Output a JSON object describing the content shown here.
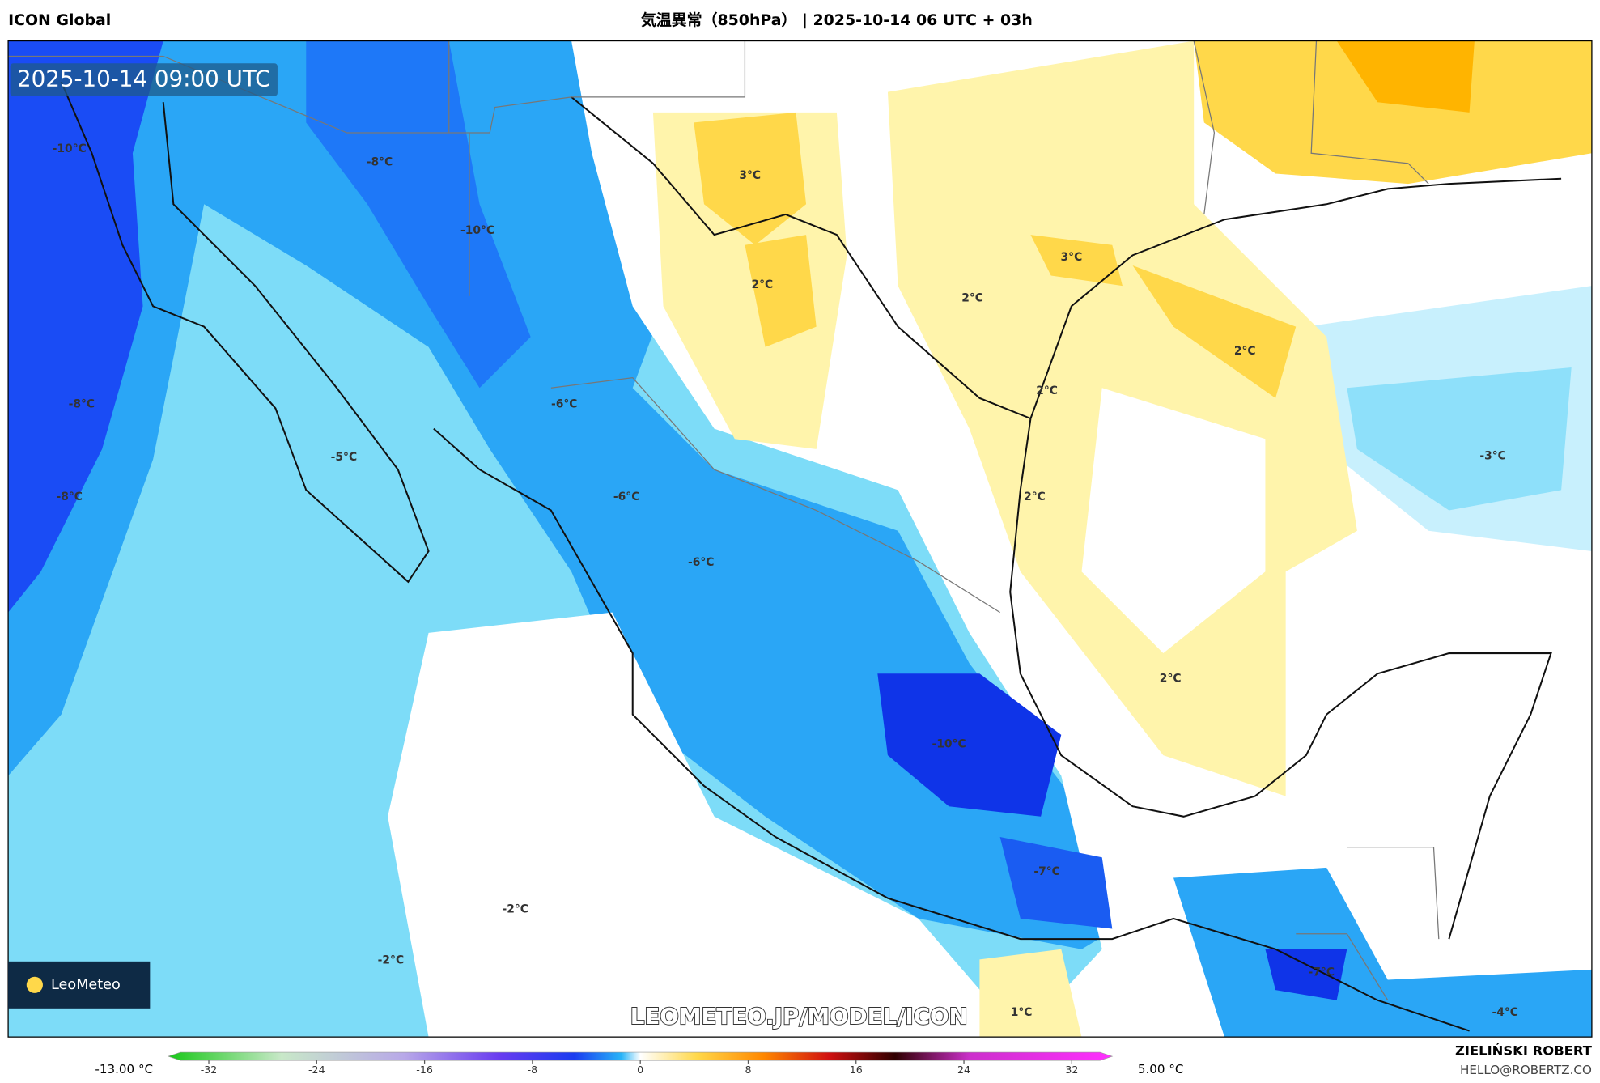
{
  "header": {
    "model": "ICON Global",
    "title": "気温異常（850hPa） | 2025-10-14 06 UTC + 03h"
  },
  "map": {
    "timestamp": "2025-10-14 09:00 UTC",
    "labels": [
      "-10°C",
      "-8°C",
      "-10°C",
      "3°C",
      "2°C",
      "3°C",
      "2°C",
      "2°C",
      "2°C",
      "-8°C",
      "-6°C",
      "-5°C",
      "-3°C",
      "-8°C",
      "-6°C",
      "2°C",
      "-6°C",
      "2°C",
      "-10°C",
      "-7°C",
      "-2°C",
      "-2°C",
      "-7°C",
      "1°C",
      "-4°C"
    ],
    "logo": "LeoMeteo",
    "watermark": "LEOMETEO.JP/MODEL/ICON"
  },
  "colorbar": {
    "min_label": "-13.00 °C",
    "max_label": "5.00 °C",
    "range": [
      -35,
      35
    ],
    "ticks": [
      -32,
      -24,
      -16,
      -8,
      0,
      8,
      16,
      24,
      32
    ]
  },
  "footer": {
    "author": "ZIELIŃSKI ROBERT",
    "contact": "HELLO@ROBERTZ.CO"
  }
}
